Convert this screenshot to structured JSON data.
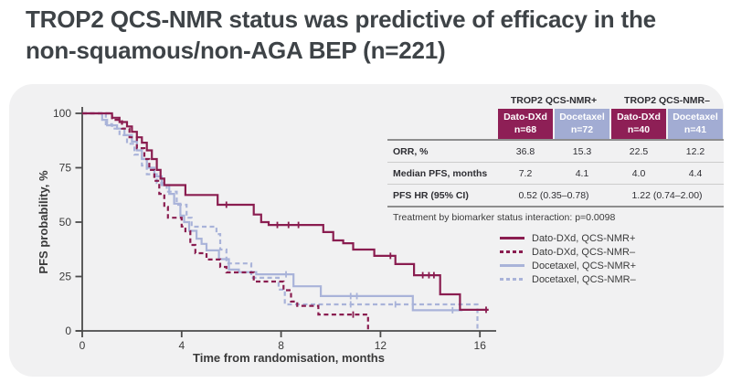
{
  "title": {
    "lines": [
      "TROP2 QCS-NMR status was predictive of efficacy in the",
      "non-squamous/non-AGA BEP (n=221)"
    ]
  },
  "colors": {
    "maroon": "#8e1f56",
    "maroon_line": "#8a1d50",
    "lavender": "#a2acd3",
    "lavender_line": "#a9b3d9",
    "panel_bg": "#f1f1f2",
    "axis": "#4b4b4b",
    "text_dark": "#3a3a3a"
  },
  "table": {
    "group_headers": [
      "TROP2 QCS-NMR+",
      "TROP2 QCS-NMR–"
    ],
    "columns": [
      {
        "drug": "Dato-DXd",
        "n": "n=68",
        "color": "maroon"
      },
      {
        "drug": "Docetaxel",
        "n": "n=72",
        "color": "lavender"
      },
      {
        "drug": "Dato-DXd",
        "n": "n=40",
        "color": "maroon"
      },
      {
        "drug": "Docetaxel",
        "n": "n=41",
        "color": "lavender"
      }
    ],
    "rows": [
      {
        "label": "ORR, %",
        "values": [
          "36.8",
          "15.3",
          "22.5",
          "12.2"
        ],
        "span": 1
      },
      {
        "label": "Median PFS, months",
        "values": [
          "7.2",
          "4.1",
          "4.0",
          "4.4"
        ],
        "span": 1
      },
      {
        "label": "PFS HR (95% CI)",
        "values": [
          "0.52 (0.35–0.78)",
          "1.22 (0.74–2.00)"
        ],
        "span": 2
      }
    ],
    "footnote": "Treatment by biomarker status interaction: p=0.0098"
  },
  "chart_data": {
    "type": "line",
    "subtype": "kaplan-meier",
    "title": "",
    "xlabel": "Time from randomisation, months",
    "ylabel": "PFS probability, %",
    "xlim": [
      0,
      16.8
    ],
    "ylim": [
      0,
      100
    ],
    "xticks": [
      0,
      4,
      8,
      12,
      16
    ],
    "yticks": [
      0,
      25,
      50,
      75,
      100
    ],
    "grid": false,
    "legend_position": "right",
    "series": [
      {
        "name": "Docetaxel, QCS-NMR–",
        "color": "#a9b3d9",
        "dash": true,
        "points": [
          [
            0,
            100
          ],
          [
            0.9,
            100
          ],
          [
            0.95,
            95
          ],
          [
            1.2,
            93
          ],
          [
            1.5,
            90
          ],
          [
            1.8,
            86
          ],
          [
            2.1,
            81
          ],
          [
            2.4,
            76
          ],
          [
            2.6,
            72
          ],
          [
            3.0,
            68
          ],
          [
            3.4,
            64
          ],
          [
            3.8,
            58
          ],
          [
            4.2,
            52
          ],
          [
            4.4,
            47.9
          ],
          [
            5.4,
            44.5
          ],
          [
            5.55,
            37.4
          ],
          [
            5.8,
            31
          ],
          [
            6.8,
            24.4
          ],
          [
            7.9,
            19
          ],
          [
            8.15,
            12.2
          ],
          [
            15.9,
            12.2
          ],
          [
            15.9,
            1
          ]
        ],
        "censors": [
          [
            10.8,
            12.2
          ],
          [
            12.6,
            12.2
          ]
        ]
      },
      {
        "name": "Docetaxel, QCS-NMR+",
        "color": "#a9b3d9",
        "dash": false,
        "points": [
          [
            0,
            100
          ],
          [
            0.7,
            100
          ],
          [
            0.8,
            97
          ],
          [
            1.0,
            94.5
          ],
          [
            1.4,
            93
          ],
          [
            1.7,
            90
          ],
          [
            2.0,
            87
          ],
          [
            2.2,
            83
          ],
          [
            2.4,
            79
          ],
          [
            2.6,
            75
          ],
          [
            2.9,
            71
          ],
          [
            3.2,
            67
          ],
          [
            3.5,
            63
          ],
          [
            3.7,
            58.5
          ],
          [
            3.95,
            53
          ],
          [
            4.1,
            50
          ],
          [
            4.3,
            46
          ],
          [
            4.6,
            42.4
          ],
          [
            4.8,
            40
          ],
          [
            5.0,
            37
          ],
          [
            5.5,
            33
          ],
          [
            5.9,
            28.2
          ],
          [
            6.3,
            27
          ],
          [
            7.0,
            26
          ],
          [
            8.5,
            20.5
          ],
          [
            9.6,
            16
          ],
          [
            13.3,
            9.5
          ],
          [
            15.3,
            9.5
          ]
        ],
        "censors": [
          [
            8.2,
            26
          ],
          [
            10.8,
            16
          ],
          [
            11.05,
            16
          ],
          [
            14.9,
            9.5
          ]
        ]
      },
      {
        "name": "Dato-DXd, QCS-NMR–",
        "color": "#8a1d50",
        "dash": true,
        "points": [
          [
            0,
            100
          ],
          [
            1.0,
            100
          ],
          [
            1.2,
            97
          ],
          [
            1.6,
            93
          ],
          [
            1.9,
            89
          ],
          [
            2.2,
            84
          ],
          [
            2.5,
            79
          ],
          [
            2.7,
            74
          ],
          [
            2.9,
            69
          ],
          [
            3.1,
            63
          ],
          [
            3.3,
            57
          ],
          [
            3.45,
            52
          ],
          [
            4.0,
            48
          ],
          [
            4.15,
            45.8
          ],
          [
            4.35,
            39.5
          ],
          [
            4.55,
            35.7
          ],
          [
            5.0,
            32.8
          ],
          [
            5.55,
            29.4
          ],
          [
            5.8,
            26.9
          ],
          [
            6.9,
            22.7
          ],
          [
            8.1,
            18.7
          ],
          [
            8.4,
            13.5
          ],
          [
            8.65,
            11.5
          ],
          [
            9.5,
            7.5
          ],
          [
            11.5,
            7.5
          ],
          [
            11.5,
            0
          ]
        ],
        "censors": [
          [
            10.9,
            7.5
          ]
        ]
      },
      {
        "name": "Dato-DXd, QCS-NMR+",
        "color": "#8a1d50",
        "dash": false,
        "points": [
          [
            0,
            100
          ],
          [
            1.1,
            100
          ],
          [
            1.2,
            98
          ],
          [
            1.5,
            96
          ],
          [
            1.8,
            94
          ],
          [
            2.0,
            91.5
          ],
          [
            2.2,
            89
          ],
          [
            2.4,
            86.5
          ],
          [
            2.6,
            83
          ],
          [
            2.8,
            79
          ],
          [
            3.0,
            74
          ],
          [
            3.15,
            70
          ],
          [
            3.3,
            67
          ],
          [
            4.15,
            62.5
          ],
          [
            5.45,
            58
          ],
          [
            6.9,
            53.5
          ],
          [
            7.2,
            50
          ],
          [
            7.5,
            48.7
          ],
          [
            9.7,
            45.4
          ],
          [
            10.1,
            41.6
          ],
          [
            10.5,
            40.3
          ],
          [
            10.9,
            37.4
          ],
          [
            11.75,
            34.5
          ],
          [
            12.6,
            30.7
          ],
          [
            13.35,
            25.6
          ],
          [
            14.4,
            16.8
          ],
          [
            15.2,
            9.7
          ],
          [
            16.35,
            9.7
          ]
        ],
        "censors": [
          [
            5.8,
            58
          ],
          [
            7.85,
            48.7
          ],
          [
            8.3,
            48.7
          ],
          [
            8.7,
            48.7
          ],
          [
            12.4,
            34.5
          ],
          [
            13.7,
            25.6
          ],
          [
            13.95,
            25.6
          ],
          [
            14.15,
            25.6
          ],
          [
            16.25,
            9.7
          ]
        ]
      }
    ]
  },
  "legend": {
    "items": [
      {
        "label": "Dato-DXd, QCS-NMR+",
        "color": "#8a1d50",
        "dash": false
      },
      {
        "label": "Dato-DXd, QCS-NMR–",
        "color": "#8a1d50",
        "dash": true
      },
      {
        "label": "Docetaxel, QCS-NMR+",
        "color": "#a9b3d9",
        "dash": false
      },
      {
        "label": "Docetaxel, QCS-NMR–",
        "color": "#a9b3d9",
        "dash": true
      }
    ]
  }
}
